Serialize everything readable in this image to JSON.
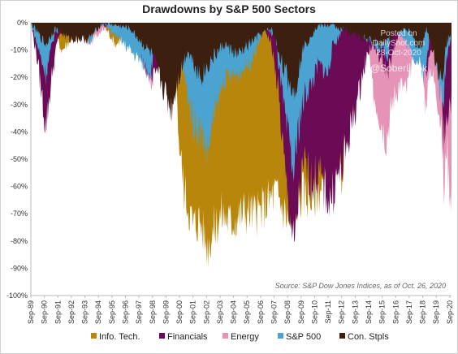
{
  "chart_data": {
    "type": "area",
    "title": "Drawdowns by S&P 500 Sectors",
    "xlabel": "",
    "ylabel": "",
    "ylim": [
      -100,
      0
    ],
    "y_ticks": [
      0,
      -10,
      -20,
      -30,
      -40,
      -50,
      -60,
      -70,
      -80,
      -90,
      -100
    ],
    "y_tick_labels": [
      "0%",
      "-10%",
      "-20%",
      "-30%",
      "-40%",
      "-50%",
      "-60%",
      "-70%",
      "-80%",
      "-90%",
      "-100%"
    ],
    "x_ticks": [
      "Sep-89",
      "Sep-90",
      "Sep-91",
      "Sep-92",
      "Sep-93",
      "Sep-94",
      "Sep-95",
      "Sep-96",
      "Sep-97",
      "Sep-98",
      "Sep-99",
      "Sep-00",
      "Sep-01",
      "Sep-02",
      "Sep-03",
      "Sep-04",
      "Sep-05",
      "Sep-06",
      "Sep-07",
      "Sep-08",
      "Sep-09",
      "Sep-10",
      "Sep-11",
      "Sep-12",
      "Sep-13",
      "Sep-14",
      "Sep-15",
      "Sep-16",
      "Sep-17",
      "Sep-18",
      "Sep-19",
      "Sep-20"
    ],
    "grid": false,
    "legend_position": "bottom",
    "source_note": "Source: S&P Dow Jones Indices, as of Oct. 26, 2020",
    "watermark_lines": [
      "Posted on",
      "DailyShot.com",
      "28-Oct-2020",
      "@SoberLook"
    ],
    "series": [
      {
        "name": "Energy",
        "color": "#e594b7",
        "points": [
          [
            1989.7,
            0
          ],
          [
            1990.5,
            -5
          ],
          [
            1990.9,
            -3
          ],
          [
            1991.5,
            -1
          ],
          [
            1993,
            -1
          ],
          [
            1994,
            -8
          ],
          [
            1995,
            -2
          ],
          [
            1997,
            -3
          ],
          [
            1998.7,
            -22
          ],
          [
            1999.5,
            -6
          ],
          [
            2000.3,
            -2
          ],
          [
            2001,
            -3
          ],
          [
            2001.7,
            -12
          ],
          [
            2002.6,
            -25
          ],
          [
            2003.3,
            -6
          ],
          [
            2004,
            -1
          ],
          [
            2005,
            -1
          ],
          [
            2006,
            -5
          ],
          [
            2007,
            -1
          ],
          [
            2008,
            -8
          ],
          [
            2008.8,
            -40
          ],
          [
            2009.2,
            -42
          ],
          [
            2009.6,
            -25
          ],
          [
            2010,
            -12
          ],
          [
            2010.5,
            -18
          ],
          [
            2011,
            -12
          ],
          [
            2011.6,
            -24
          ],
          [
            2012,
            -15
          ],
          [
            2012.6,
            -10
          ],
          [
            2013,
            -4
          ],
          [
            2013.5,
            -8
          ],
          [
            2014,
            -2
          ],
          [
            2014.5,
            0
          ],
          [
            2015,
            -25
          ],
          [
            2015.6,
            -35
          ],
          [
            2016,
            -42
          ],
          [
            2016.5,
            -28
          ],
          [
            2017,
            -22
          ],
          [
            2017.5,
            -25
          ],
          [
            2018,
            -12
          ],
          [
            2018.5,
            -8
          ],
          [
            2018.9,
            -30
          ],
          [
            2019.3,
            -16
          ],
          [
            2019.9,
            -30
          ],
          [
            2020.2,
            -50
          ],
          [
            2020.3,
            -68
          ],
          [
            2020.45,
            -40
          ],
          [
            2020.6,
            -55
          ],
          [
            2020.75,
            -62
          ],
          [
            2020.83,
            -60
          ]
        ]
      },
      {
        "name": "Info. Tech.",
        "color": "#b8860b",
        "points": [
          [
            1989.7,
            0
          ],
          [
            1990.8,
            -15
          ],
          [
            1991.5,
            -4
          ],
          [
            1992,
            -10
          ],
          [
            1993,
            -4
          ],
          [
            1994,
            -6
          ],
          [
            1995,
            0
          ],
          [
            1996,
            -8
          ],
          [
            1997,
            -2
          ],
          [
            1998.7,
            -18
          ],
          [
            1999,
            0
          ],
          [
            2000.2,
            0
          ],
          [
            2000.7,
            -45
          ],
          [
            2001,
            -60
          ],
          [
            2001.7,
            -74
          ],
          [
            2002.2,
            -72
          ],
          [
            2002.75,
            -82
          ],
          [
            2003.2,
            -76
          ],
          [
            2003.8,
            -70
          ],
          [
            2004.5,
            -73
          ],
          [
            2005.5,
            -69
          ],
          [
            2006.5,
            -70
          ],
          [
            2007.8,
            -62
          ],
          [
            2008.2,
            -66
          ],
          [
            2008.9,
            -74
          ],
          [
            2009.3,
            -68
          ],
          [
            2009.8,
            -62
          ],
          [
            2010.5,
            -64
          ],
          [
            2011.5,
            -58
          ],
          [
            2012.3,
            -55
          ],
          [
            2012.7,
            -56
          ],
          [
            2013,
            -40
          ],
          [
            2013.5,
            -30
          ],
          [
            2014,
            -10
          ],
          [
            2014.5,
            -3
          ],
          [
            2015,
            0
          ],
          [
            2016,
            0
          ],
          [
            2018,
            0
          ],
          [
            2020,
            0
          ],
          [
            2020.83,
            0
          ]
        ]
      },
      {
        "name": "Financials",
        "color": "#6b0a55",
        "points": [
          [
            1989.7,
            0
          ],
          [
            1990.2,
            -14
          ],
          [
            1990.8,
            -38
          ],
          [
            1991.3,
            -18
          ],
          [
            1991.7,
            -6
          ],
          [
            1992,
            -2
          ],
          [
            1994,
            -4
          ],
          [
            1995,
            -1
          ],
          [
            1997,
            -2
          ],
          [
            1998.7,
            -22
          ],
          [
            1999.5,
            -10
          ],
          [
            2000.2,
            -18
          ],
          [
            2000.8,
            -3
          ],
          [
            2001.5,
            -8
          ],
          [
            2002.5,
            -22
          ],
          [
            2003,
            -5
          ],
          [
            2005,
            -2
          ],
          [
            2007,
            -2
          ],
          [
            2007.5,
            -8
          ],
          [
            2008,
            -25
          ],
          [
            2008.5,
            -55
          ],
          [
            2009,
            -75
          ],
          [
            2009.2,
            -83
          ],
          [
            2009.6,
            -60
          ],
          [
            2010,
            -52
          ],
          [
            2010.5,
            -58
          ],
          [
            2011,
            -55
          ],
          [
            2011.8,
            -66
          ],
          [
            2012.3,
            -58
          ],
          [
            2012.8,
            -52
          ],
          [
            2013.3,
            -40
          ],
          [
            2013.8,
            -30
          ],
          [
            2014.3,
            -18
          ],
          [
            2014.7,
            -10
          ],
          [
            2015,
            -8
          ],
          [
            2016.1,
            -18
          ],
          [
            2016.6,
            -10
          ],
          [
            2017,
            -2
          ],
          [
            2018,
            -3
          ],
          [
            2018.9,
            -18
          ],
          [
            2019.4,
            -8
          ],
          [
            2020,
            -3
          ],
          [
            2020.2,
            -43
          ],
          [
            2020.5,
            -33
          ],
          [
            2020.83,
            -28
          ]
        ]
      },
      {
        "name": "S&P 500",
        "color": "#4aa3d0",
        "points": [
          [
            1989.7,
            0
          ],
          [
            1990.8,
            -19
          ],
          [
            1991.5,
            -3
          ],
          [
            1993,
            -2
          ],
          [
            1994,
            -7
          ],
          [
            1995,
            0
          ],
          [
            1998.6,
            -18
          ],
          [
            1999,
            0
          ],
          [
            2000.2,
            0
          ],
          [
            2000.8,
            -14
          ],
          [
            2001.7,
            -36
          ],
          [
            2002.5,
            -42
          ],
          [
            2002.75,
            -48
          ],
          [
            2003.2,
            -36
          ],
          [
            2004,
            -21
          ],
          [
            2005,
            -19
          ],
          [
            2006,
            -14
          ],
          [
            2007,
            -2
          ],
          [
            2007.8,
            -5
          ],
          [
            2008.5,
            -35
          ],
          [
            2009.17,
            -56
          ],
          [
            2009.5,
            -38
          ],
          [
            2010,
            -26
          ],
          [
            2010.5,
            -22
          ],
          [
            2011,
            -15
          ],
          [
            2011.7,
            -19
          ],
          [
            2012,
            -9
          ],
          [
            2012.5,
            -5
          ],
          [
            2013,
            0
          ],
          [
            2015.7,
            -10
          ],
          [
            2016.1,
            -12
          ],
          [
            2016.5,
            0
          ],
          [
            2018.9,
            -19
          ],
          [
            2019.3,
            0
          ],
          [
            2020.2,
            -33
          ],
          [
            2020.4,
            -15
          ],
          [
            2020.83,
            -3
          ]
        ]
      },
      {
        "name": "Con. Stpls",
        "color": "#3d1f10",
        "points": [
          [
            1989.7,
            0
          ],
          [
            1990.8,
            -8
          ],
          [
            1991.5,
            -2
          ],
          [
            1992.5,
            -6
          ],
          [
            1994,
            -6
          ],
          [
            1995,
            0
          ],
          [
            1997,
            -2
          ],
          [
            1998.7,
            -12
          ],
          [
            1999.2,
            -20
          ],
          [
            2000.1,
            -32
          ],
          [
            2000.5,
            -22
          ],
          [
            2001.3,
            -10
          ],
          [
            2002.3,
            -20
          ],
          [
            2003,
            -14
          ],
          [
            2004,
            -8
          ],
          [
            2005,
            -12
          ],
          [
            2006.5,
            -5
          ],
          [
            2007.5,
            -2
          ],
          [
            2008.5,
            -18
          ],
          [
            2009.2,
            -26
          ],
          [
            2009.8,
            -10
          ],
          [
            2010.5,
            -4
          ],
          [
            2011,
            -1
          ],
          [
            2012,
            -1
          ],
          [
            2015.5,
            -8
          ],
          [
            2017.5,
            -2
          ],
          [
            2018.5,
            -10
          ],
          [
            2019,
            -2
          ],
          [
            2020.2,
            -24
          ],
          [
            2020.4,
            -8
          ],
          [
            2020.83,
            -4
          ]
        ]
      }
    ],
    "legend_order": [
      "Info. Tech.",
      "Financials",
      "Energy",
      "S&P 500",
      "Con. Stpls"
    ]
  }
}
